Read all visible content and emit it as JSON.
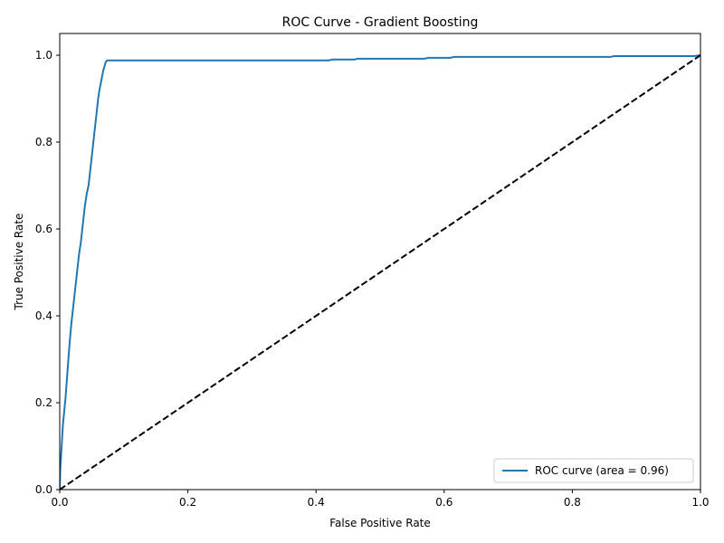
{
  "chart_data": {
    "type": "line",
    "title": "ROC Curve - Gradient Boosting",
    "xlabel": "False Positive Rate",
    "ylabel": "True Positive Rate",
    "xlim": [
      0.0,
      1.0
    ],
    "ylim": [
      0.0,
      1.05
    ],
    "xticks": [
      "0.0",
      "0.2",
      "0.4",
      "0.6",
      "0.8",
      "1.0"
    ],
    "yticks": [
      "0.0",
      "0.2",
      "0.4",
      "0.6",
      "0.8",
      "1.0"
    ],
    "grid": false,
    "legend_position": "lower-right",
    "series": [
      {
        "name": "ROC curve (area = 0.96)",
        "color": "#1f77b4",
        "style": "solid",
        "x": [
          0.0,
          0.001,
          0.003,
          0.005,
          0.007,
          0.009,
          0.011,
          0.013,
          0.015,
          0.018,
          0.021,
          0.024,
          0.027,
          0.03,
          0.033,
          0.036,
          0.039,
          0.042,
          0.045,
          0.048,
          0.051,
          0.054,
          0.057,
          0.06,
          0.062,
          0.064,
          0.066,
          0.068,
          0.07,
          0.072,
          0.074,
          0.076,
          0.1,
          0.2,
          0.3,
          0.42,
          0.425,
          0.46,
          0.465,
          0.57,
          0.575,
          0.61,
          0.615,
          0.86,
          0.865,
          0.99,
          1.0
        ],
        "y": [
          0.0,
          0.05,
          0.1,
          0.15,
          0.18,
          0.21,
          0.25,
          0.29,
          0.33,
          0.38,
          0.42,
          0.46,
          0.5,
          0.54,
          0.57,
          0.61,
          0.65,
          0.68,
          0.7,
          0.74,
          0.78,
          0.82,
          0.86,
          0.9,
          0.92,
          0.935,
          0.95,
          0.965,
          0.975,
          0.985,
          0.988,
          0.988,
          0.988,
          0.988,
          0.988,
          0.988,
          0.99,
          0.99,
          0.992,
          0.992,
          0.994,
          0.994,
          0.996,
          0.996,
          0.998,
          0.998,
          1.0
        ]
      },
      {
        "name": "",
        "color": "#000000",
        "style": "dashed",
        "x": [
          0.0,
          1.0
        ],
        "y": [
          0.0,
          1.0
        ]
      }
    ]
  }
}
